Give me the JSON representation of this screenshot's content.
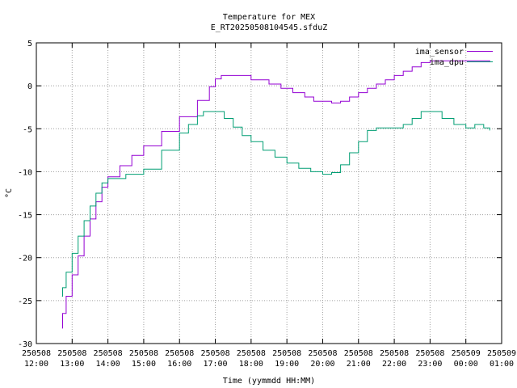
{
  "chart_data": {
    "type": "line",
    "title": "Temperature for MEX",
    "subtitle": "E_RT20250508104545.sfduZ",
    "xlabel": "Time (yymmdd HH:MM)",
    "ylabel": "°C",
    "ylim": [
      -30,
      5
    ],
    "xlim": [
      "2025-05-08 12:00",
      "2025-05-09 01:00"
    ],
    "grid": true,
    "legend_position": "top-right",
    "yticks": [
      "-30",
      "-25",
      "-20",
      "-15",
      "-10",
      "-5",
      "0",
      "5"
    ],
    "xticks": [
      {
        "date": "250508",
        "time": "12:00"
      },
      {
        "date": "250508",
        "time": "13:00"
      },
      {
        "date": "250508",
        "time": "14:00"
      },
      {
        "date": "250508",
        "time": "15:00"
      },
      {
        "date": "250508",
        "time": "16:00"
      },
      {
        "date": "250508",
        "time": "17:00"
      },
      {
        "date": "250508",
        "time": "18:00"
      },
      {
        "date": "250508",
        "time": "19:00"
      },
      {
        "date": "250508",
        "time": "20:00"
      },
      {
        "date": "250508",
        "time": "21:00"
      },
      {
        "date": "250508",
        "time": "22:00"
      },
      {
        "date": "250508",
        "time": "23:00"
      },
      {
        "date": "250509",
        "time": "00:00"
      },
      {
        "date": "250509",
        "time": "01:00"
      }
    ],
    "series": [
      {
        "name": "ima_sensor",
        "color": "#9400d3",
        "points": [
          [
            "2025-05-08 12:43",
            -28.2
          ],
          [
            "2025-05-08 12:44",
            -26.5
          ],
          [
            "2025-05-08 12:50",
            -24.5
          ],
          [
            "2025-05-08 13:00",
            -22.0
          ],
          [
            "2025-05-08 13:10",
            -19.8
          ],
          [
            "2025-05-08 13:20",
            -17.5
          ],
          [
            "2025-05-08 13:30",
            -15.5
          ],
          [
            "2025-05-08 13:40",
            -13.5
          ],
          [
            "2025-05-08 13:50",
            -11.8
          ],
          [
            "2025-05-08 14:00",
            -10.6
          ],
          [
            "2025-05-08 14:20",
            -9.3
          ],
          [
            "2025-05-08 14:40",
            -8.1
          ],
          [
            "2025-05-08 15:00",
            -7.0
          ],
          [
            "2025-05-08 15:30",
            -5.3
          ],
          [
            "2025-05-08 16:00",
            -3.6
          ],
          [
            "2025-05-08 16:30",
            -1.7
          ],
          [
            "2025-05-08 16:50",
            -0.1
          ],
          [
            "2025-05-08 17:00",
            0.8
          ],
          [
            "2025-05-08 17:10",
            1.2
          ],
          [
            "2025-05-08 17:50",
            1.2
          ],
          [
            "2025-05-08 18:00",
            0.7
          ],
          [
            "2025-05-08 18:15",
            0.7
          ],
          [
            "2025-05-08 18:30",
            0.2
          ],
          [
            "2025-05-08 18:50",
            -0.3
          ],
          [
            "2025-05-08 19:10",
            -0.8
          ],
          [
            "2025-05-08 19:30",
            -1.3
          ],
          [
            "2025-05-08 19:45",
            -1.8
          ],
          [
            "2025-05-08 20:15",
            -2.0
          ],
          [
            "2025-05-08 20:30",
            -1.8
          ],
          [
            "2025-05-08 20:45",
            -1.3
          ],
          [
            "2025-05-08 21:00",
            -0.8
          ],
          [
            "2025-05-08 21:15",
            -0.3
          ],
          [
            "2025-05-08 21:30",
            0.2
          ],
          [
            "2025-05-08 21:45",
            0.7
          ],
          [
            "2025-05-08 22:00",
            1.2
          ],
          [
            "2025-05-08 22:15",
            1.7
          ],
          [
            "2025-05-08 22:30",
            2.2
          ],
          [
            "2025-05-08 22:45",
            2.7
          ],
          [
            "2025-05-08 23:00",
            2.9
          ],
          [
            "2025-05-09 00:00",
            2.9
          ],
          [
            "2025-05-09 00:40",
            2.8
          ]
        ]
      },
      {
        "name": "ima_dpu",
        "color": "#009e73",
        "points": [
          [
            "2025-05-08 12:43",
            -24.5
          ],
          [
            "2025-05-08 12:44",
            -23.5
          ],
          [
            "2025-05-08 12:50",
            -21.7
          ],
          [
            "2025-05-08 13:00",
            -19.5
          ],
          [
            "2025-05-08 13:10",
            -17.5
          ],
          [
            "2025-05-08 13:20",
            -15.7
          ],
          [
            "2025-05-08 13:30",
            -14.0
          ],
          [
            "2025-05-08 13:40",
            -12.5
          ],
          [
            "2025-05-08 13:50",
            -11.3
          ],
          [
            "2025-05-08 14:00",
            -10.8
          ],
          [
            "2025-05-08 14:30",
            -10.3
          ],
          [
            "2025-05-08 15:00",
            -9.7
          ],
          [
            "2025-05-08 15:30",
            -7.5
          ],
          [
            "2025-05-08 16:00",
            -5.5
          ],
          [
            "2025-05-08 16:15",
            -4.5
          ],
          [
            "2025-05-08 16:30",
            -3.5
          ],
          [
            "2025-05-08 16:40",
            -3.0
          ],
          [
            "2025-05-08 17:00",
            -3.0
          ],
          [
            "2025-05-08 17:15",
            -3.8
          ],
          [
            "2025-05-08 17:30",
            -4.8
          ],
          [
            "2025-05-08 17:45",
            -5.8
          ],
          [
            "2025-05-08 18:00",
            -6.5
          ],
          [
            "2025-05-08 18:20",
            -7.5
          ],
          [
            "2025-05-08 18:40",
            -8.3
          ],
          [
            "2025-05-08 19:00",
            -9.0
          ],
          [
            "2025-05-08 19:20",
            -9.6
          ],
          [
            "2025-05-08 19:40",
            -10.0
          ],
          [
            "2025-05-08 20:00",
            -10.3
          ],
          [
            "2025-05-08 20:15",
            -10.1
          ],
          [
            "2025-05-08 20:30",
            -9.2
          ],
          [
            "2025-05-08 20:45",
            -7.8
          ],
          [
            "2025-05-08 21:00",
            -6.5
          ],
          [
            "2025-05-08 21:15",
            -5.2
          ],
          [
            "2025-05-08 21:30",
            -4.9
          ],
          [
            "2025-05-08 22:00",
            -4.9
          ],
          [
            "2025-05-08 22:15",
            -4.5
          ],
          [
            "2025-05-08 22:30",
            -3.8
          ],
          [
            "2025-05-08 22:45",
            -3.0
          ],
          [
            "2025-05-08 23:05",
            -3.0
          ],
          [
            "2025-05-08 23:20",
            -3.8
          ],
          [
            "2025-05-08 23:40",
            -4.5
          ],
          [
            "2025-05-09 00:00",
            -4.9
          ],
          [
            "2025-05-09 00:15",
            -4.5
          ],
          [
            "2025-05-09 00:30",
            -4.9
          ],
          [
            "2025-05-09 00:40",
            -5.2
          ]
        ]
      }
    ]
  }
}
